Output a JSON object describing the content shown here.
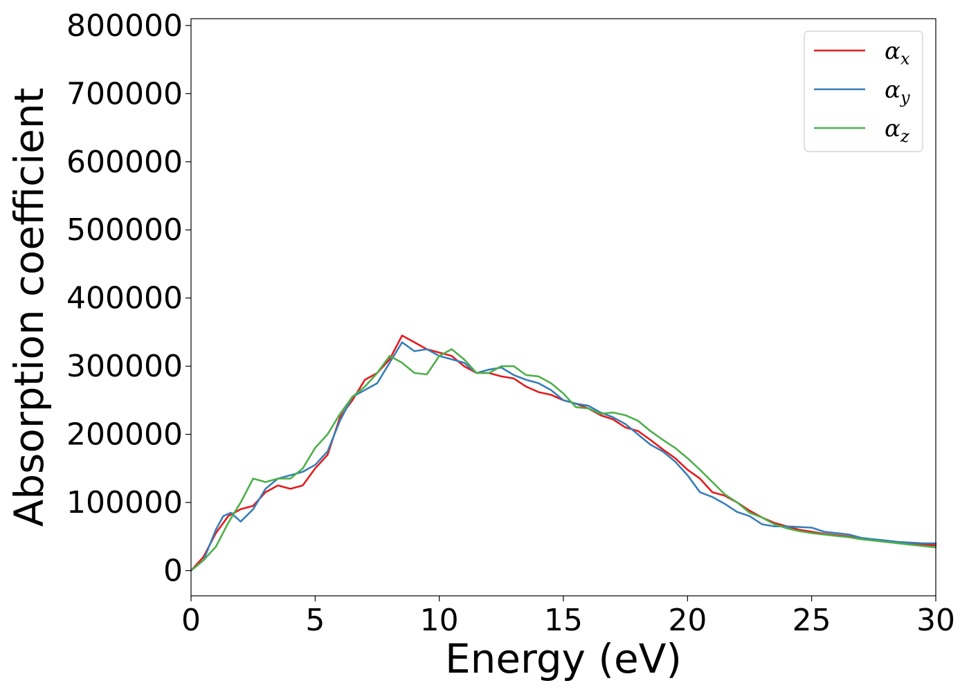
{
  "chart_data": {
    "type": "line",
    "title": "",
    "xlabel": "Energy (eV)",
    "ylabel": "Absorption coefficient",
    "xlim": [
      0,
      30
    ],
    "ylim": [
      -37000,
      810000
    ],
    "xticks": [
      0,
      5,
      10,
      15,
      20,
      25,
      30
    ],
    "xtick_labels": [
      "0",
      "5",
      "10",
      "15",
      "20",
      "25",
      "30"
    ],
    "yticks": [
      0,
      100000,
      200000,
      300000,
      400000,
      500000,
      600000,
      700000,
      800000
    ],
    "ytick_labels": [
      "0",
      "100000",
      "200000",
      "300000",
      "400000",
      "500000",
      "600000",
      "700000",
      "800000"
    ],
    "grid": false,
    "legend_position": "top-right",
    "series": [
      {
        "name": "α",
        "subscript": "x",
        "color": "#e41a1c",
        "x": [
          0,
          0.5,
          1,
          1.5,
          2,
          2.5,
          3,
          3.5,
          4,
          4.5,
          5,
          5.5,
          6,
          6.5,
          7,
          7.5,
          8,
          8.5,
          9,
          9.5,
          10,
          10.5,
          11,
          11.5,
          12,
          12.5,
          13,
          13.5,
          14,
          14.5,
          15,
          15.5,
          16,
          16.5,
          17,
          17.5,
          18,
          18.5,
          19,
          19.5,
          20,
          20.5,
          21,
          21.5,
          22,
          22.5,
          23,
          23.5,
          24,
          24.5,
          25,
          25.5,
          26,
          26.5,
          27,
          27.5,
          28,
          28.5,
          29,
          29.5,
          30
        ],
        "y": [
          0,
          20000,
          55000,
          80000,
          90000,
          95000,
          115000,
          125000,
          120000,
          125000,
          150000,
          170000,
          225000,
          250000,
          280000,
          290000,
          310000,
          345000,
          335000,
          325000,
          320000,
          315000,
          300000,
          290000,
          290000,
          285000,
          282000,
          270000,
          262000,
          258000,
          250000,
          245000,
          238000,
          228000,
          222000,
          210000,
          205000,
          192000,
          178000,
          165000,
          148000,
          135000,
          115000,
          110000,
          100000,
          88000,
          78000,
          70000,
          65000,
          60000,
          57000,
          54000,
          52000,
          50000,
          47000,
          45000,
          43000,
          41000,
          39000,
          38000,
          37000
        ]
      },
      {
        "name": "α",
        "subscript": "y",
        "color": "#377eb8",
        "x": [
          0,
          0.5,
          1,
          1.3,
          1.6,
          2,
          2.5,
          3,
          3.5,
          4,
          4.5,
          5,
          5.5,
          6,
          6.5,
          7,
          7.5,
          8,
          8.5,
          9,
          9.5,
          10,
          10.5,
          11,
          11.5,
          12,
          12.5,
          13,
          13.5,
          14,
          14.5,
          15,
          15.5,
          16,
          16.5,
          17,
          17.5,
          18,
          18.5,
          19,
          19.5,
          20,
          20.5,
          21,
          21.5,
          22,
          22.5,
          23,
          23.5,
          24,
          24.5,
          25,
          25.5,
          26,
          26.5,
          27,
          27.5,
          28,
          28.5,
          29,
          29.5,
          30
        ],
        "y": [
          0,
          15000,
          60000,
          80000,
          85000,
          72000,
          90000,
          120000,
          135000,
          140000,
          145000,
          155000,
          175000,
          220000,
          255000,
          265000,
          275000,
          305000,
          335000,
          322000,
          325000,
          315000,
          310000,
          305000,
          290000,
          295000,
          298000,
          287000,
          280000,
          275000,
          265000,
          250000,
          245000,
          242000,
          232000,
          225000,
          215000,
          200000,
          185000,
          175000,
          160000,
          140000,
          115000,
          108000,
          98000,
          86000,
          80000,
          68000,
          65000,
          65000,
          64000,
          63000,
          57000,
          55000,
          53000,
          48000,
          46000,
          44000,
          42000,
          41000,
          40000,
          40000
        ]
      },
      {
        "name": "α",
        "subscript": "z",
        "color": "#4daf4a",
        "x": [
          0,
          0.5,
          1,
          1.5,
          2,
          2.5,
          3,
          3.5,
          4,
          4.5,
          5,
          5.5,
          6,
          6.5,
          7,
          7.5,
          8,
          8.5,
          9,
          9.5,
          10,
          10.5,
          11,
          11.5,
          12,
          12.5,
          13,
          13.5,
          14,
          14.5,
          15,
          15.5,
          16,
          16.5,
          17,
          17.5,
          18,
          18.5,
          19,
          19.5,
          20,
          20.5,
          21,
          21.5,
          22,
          22.5,
          23,
          23.5,
          24,
          24.5,
          25,
          25.5,
          26,
          26.5,
          27,
          27.5,
          28,
          28.5,
          29,
          29.5,
          30
        ],
        "y": [
          0,
          15000,
          35000,
          70000,
          100000,
          135000,
          130000,
          135000,
          135000,
          150000,
          180000,
          200000,
          230000,
          255000,
          270000,
          290000,
          315000,
          305000,
          290000,
          288000,
          315000,
          325000,
          310000,
          290000,
          290000,
          300000,
          300000,
          287000,
          285000,
          275000,
          260000,
          240000,
          238000,
          230000,
          232000,
          228000,
          220000,
          205000,
          192000,
          180000,
          165000,
          148000,
          130000,
          112000,
          100000,
          85000,
          78000,
          68000,
          62000,
          58000,
          55000,
          53000,
          51000,
          49000,
          46000,
          44000,
          42000,
          40000,
          38000,
          36000,
          34000
        ]
      }
    ]
  }
}
